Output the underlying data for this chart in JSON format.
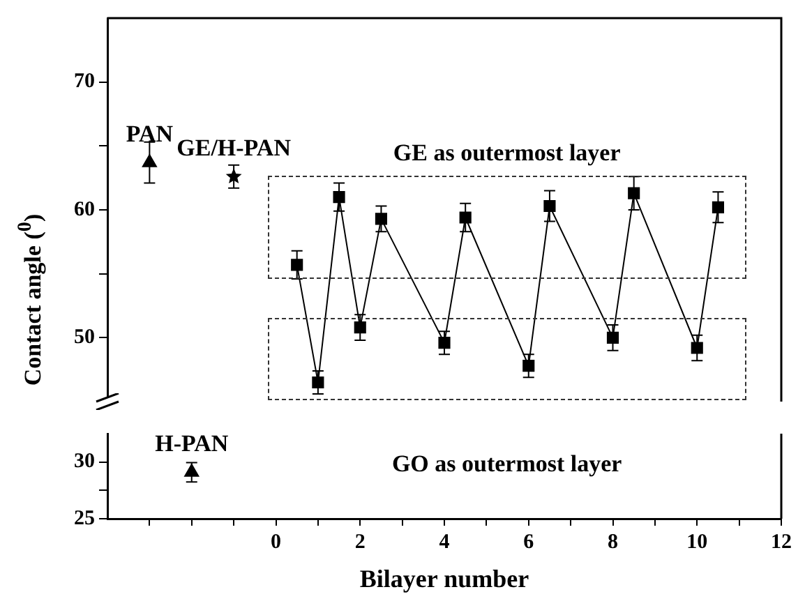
{
  "chart_data": [
    {
      "type": "line",
      "ylabel": "Contact angle ($^{0}$)",
      "xlim": [
        -4,
        12
      ],
      "tick_labels": "y",
      "ylim": [
        45,
        75
      ],
      "yticks": [
        50,
        {
          "value": 55,
          "label": null
        },
        60,
        {
          "value": 65,
          "label": null
        },
        70
      ],
      "annotations": [
        "GE as outermost layer"
      ],
      "series": [
        {
          "color": "#000000",
          "marker": "square",
          "x": [
            0.5,
            1,
            1.5,
            2,
            2.5,
            4,
            4.5,
            6,
            6.5,
            8,
            8.5,
            10,
            10.5
          ],
          "values": [
            55.7,
            46.5,
            61.0,
            50.8,
            59.3,
            49.6,
            59.4,
            47.8,
            60.3,
            50.0,
            61.3,
            49.2,
            60.2
          ],
          "errors": [
            1.1,
            0.9,
            1.1,
            1.0,
            1.0,
            0.9,
            1.1,
            0.9,
            1.2,
            1.0,
            1.3,
            1.0,
            1.2
          ]
        },
        {
          "type": "scatter",
          "name": "PAN",
          "color": "#000000",
          "marker": "triangle",
          "x": [
            -3
          ],
          "values": [
            63.7
          ],
          "errors": [
            1.6
          ]
        },
        {
          "type": "scatter",
          "name": "GE/H-PAN",
          "color": "#000000",
          "marker": "star",
          "x": [
            -1
          ],
          "values": [
            62.6
          ],
          "errors": [
            0.9
          ]
        }
      ]
    },
    {
      "type": "scatter",
      "xlabel": "Bilayer number",
      "xlim": [
        -4,
        12
      ],
      "xticks": [
        {
          "value": -3,
          "label": null
        },
        {
          "value": -2,
          "label": null
        },
        {
          "value": -1,
          "label": null
        },
        0,
        {
          "value": 1,
          "label": null
        },
        2,
        {
          "value": 3,
          "label": null
        },
        4,
        {
          "value": 5,
          "label": null
        },
        6,
        {
          "value": 7,
          "label": null
        },
        8,
        {
          "value": 9,
          "label": null
        },
        10,
        {
          "value": 11,
          "label": null
        },
        12
      ],
      "ylim": [
        25,
        32.5
      ],
      "yticks": [
        25,
        {
          "value": 27.5,
          "label": null
        },
        30
      ],
      "annotations": [
        "GO as outermost layer"
      ],
      "series": [
        {
          "name": "H-PAN",
          "color": "#000000",
          "marker": "triangle",
          "x": [
            -2
          ],
          "values": [
            29.1
          ],
          "errors": [
            0.85
          ]
        }
      ]
    }
  ]
}
